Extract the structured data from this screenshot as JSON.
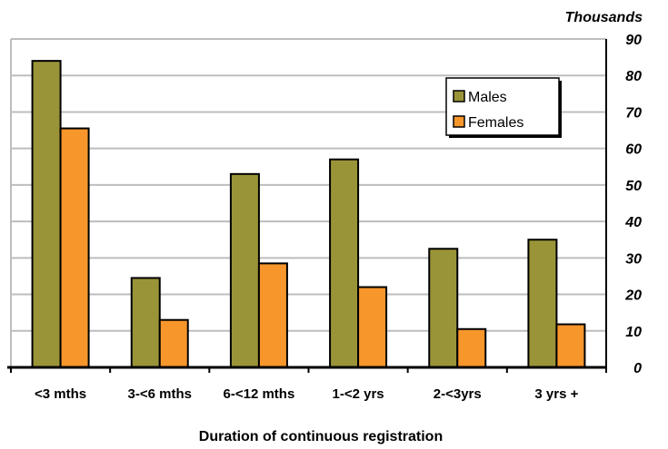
{
  "chart_data": {
    "type": "bar",
    "title": "",
    "xlabel": "Duration of continuous registration",
    "ylabel": "",
    "y_unit_label": "Thousands",
    "ylim": [
      0,
      90
    ],
    "y_ticks": [
      0,
      10,
      20,
      30,
      40,
      50,
      60,
      70,
      80,
      90
    ],
    "y_axis_side": "right",
    "grid": true,
    "legend_position": "top-right",
    "categories": [
      "<3 mths",
      "3-<6 mths",
      "6-<12 mths",
      "1-<2 yrs",
      "2-<3yrs",
      "3 yrs +"
    ],
    "series": [
      {
        "name": "Males",
        "color": "#9a9438",
        "values": [
          84,
          24.5,
          53,
          57,
          32.5,
          35
        ]
      },
      {
        "name": "Females",
        "color": "#f7962b",
        "values": [
          65.5,
          13,
          28.5,
          22,
          10.5,
          11.8
        ]
      }
    ]
  }
}
